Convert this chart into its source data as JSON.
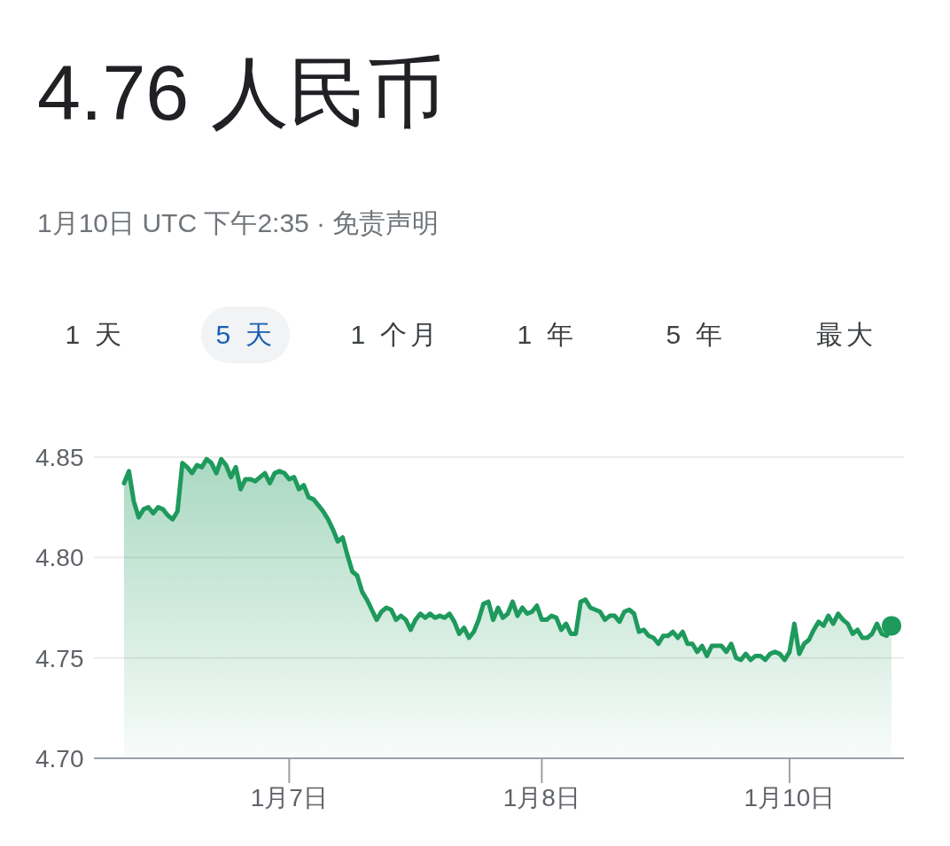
{
  "chart_data": {
    "type": "area",
    "title": "4.76 人民币",
    "subtitle": "1月10日 UTC 下午2:35 · 免责声明",
    "annotations": [
      "1 天",
      "5 天",
      "1 个月",
      "1 年",
      "5 年",
      "最大"
    ],
    "categories": [
      null,
      null,
      null,
      null,
      null,
      null,
      null,
      null,
      null,
      null,
      null,
      null,
      null,
      null,
      null,
      null,
      null,
      null,
      null,
      null,
      null,
      null,
      null,
      null,
      null,
      null,
      null,
      null,
      null,
      null,
      null,
      null,
      null,
      null,
      "1月7日",
      null,
      null,
      null,
      null,
      null,
      null,
      null,
      null,
      null,
      null,
      null,
      null,
      null,
      null,
      null,
      null,
      null,
      null,
      null,
      null,
      null,
      null,
      null,
      null,
      null,
      null,
      null,
      null,
      null,
      null,
      null,
      null,
      null,
      null,
      null,
      null,
      null,
      null,
      null,
      null,
      null,
      null,
      null,
      null,
      null,
      null,
      null,
      null,
      null,
      null,
      null,
      "1月8日",
      null,
      null,
      null,
      null,
      null,
      null,
      null,
      null,
      null,
      null,
      null,
      null,
      null,
      null,
      null,
      null,
      null,
      null,
      null,
      null,
      null,
      null,
      null,
      null,
      null,
      null,
      null,
      null,
      null,
      null,
      null,
      null,
      null,
      null,
      null,
      null,
      null,
      null,
      null,
      null,
      null,
      null,
      null,
      null,
      null,
      null,
      null,
      null,
      null,
      null,
      "1月10日",
      null,
      null,
      null,
      null,
      null,
      null,
      null,
      null,
      null,
      null,
      null,
      null,
      null,
      null,
      null,
      null,
      null,
      null,
      null,
      null,
      null
    ],
    "ylim": [
      4.7,
      4.85
    ],
    "yticks": [
      {
        "value": 4.7,
        "label": "4.70"
      },
      4.75,
      {
        "value": 4.8,
        "label": "4.80"
      },
      4.85
    ],
    "grid": "y",
    "marker": "none",
    "line_style": "solid",
    "series": [
      {
        "color": "#1e9a5c",
        "values": [
          4.837,
          4.843,
          4.828,
          4.82,
          4.824,
          4.825,
          4.822,
          4.825,
          4.824,
          4.821,
          4.819,
          4.823,
          4.847,
          4.845,
          4.842,
          4.846,
          4.845,
          4.849,
          4.847,
          4.842,
          4.849,
          4.846,
          4.84,
          4.845,
          4.834,
          4.839,
          4.839,
          4.838,
          4.84,
          4.842,
          4.837,
          4.842,
          4.843,
          4.842,
          4.839,
          4.84,
          4.834,
          4.836,
          4.83,
          4.829,
          4.826,
          4.823,
          4.819,
          4.814,
          4.808,
          4.81,
          4.801,
          4.793,
          4.791,
          4.783,
          4.779,
          4.774,
          4.769,
          4.773,
          4.775,
          4.774,
          4.769,
          4.771,
          4.769,
          4.764,
          4.769,
          4.772,
          4.77,
          4.772,
          4.77,
          4.771,
          4.77,
          4.772,
          4.768,
          4.762,
          4.765,
          4.76,
          4.763,
          4.769,
          4.777,
          4.778,
          4.769,
          4.775,
          4.77,
          4.772,
          4.778,
          4.771,
          4.775,
          4.772,
          4.773,
          4.776,
          4.769,
          4.769,
          4.771,
          4.77,
          4.764,
          4.767,
          4.762,
          4.762,
          4.778,
          4.779,
          4.775,
          4.774,
          4.773,
          4.769,
          4.771,
          4.771,
          4.768,
          4.773,
          4.774,
          4.772,
          4.763,
          4.764,
          4.761,
          4.76,
          4.757,
          4.761,
          4.761,
          4.763,
          4.76,
          4.763,
          4.757,
          4.757,
          4.753,
          4.756,
          4.751,
          4.756,
          4.756,
          4.756,
          4.753,
          4.757,
          4.75,
          4.749,
          4.752,
          4.749,
          4.751,
          4.751,
          4.749,
          4.752,
          4.753,
          4.752,
          4.749,
          4.753,
          4.767,
          4.752,
          4.757,
          4.759,
          4.764,
          4.768,
          4.766,
          4.771,
          4.767,
          4.772,
          4.769,
          4.767,
          4.762,
          4.764,
          4.76,
          4.76,
          4.762,
          4.767,
          4.762,
          4.761,
          4.766
        ]
      }
    ]
  }
}
